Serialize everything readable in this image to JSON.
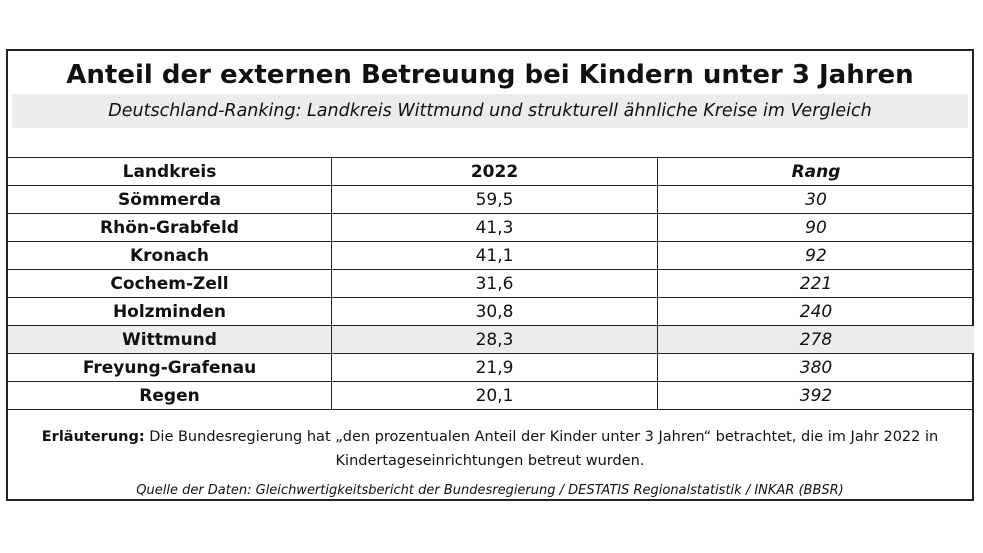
{
  "title": "Anteil der externen Betreuung bei Kindern unter 3 Jahren",
  "subtitle": "Deutschland-Ranking: Landkreis Wittmund und strukturell ähnliche Kreise im Vergleich",
  "table": {
    "headers": [
      "Landkreis",
      "2022",
      "Rang"
    ],
    "rows": [
      {
        "landkreis": "Sömmerda",
        "value": "59,5",
        "rang": "30"
      },
      {
        "landkreis": "Rhön-Grabfeld",
        "value": "41,3",
        "rang": "90"
      },
      {
        "landkreis": "Kronach",
        "value": "41,1",
        "rang": "92"
      },
      {
        "landkreis": "Cochem-Zell",
        "value": "31,6",
        "rang": "221"
      },
      {
        "landkreis": "Holzminden",
        "value": "30,8",
        "rang": "240"
      },
      {
        "landkreis": "Wittmund",
        "value": "28,3",
        "rang": "278",
        "highlight": true
      },
      {
        "landkreis": "Freyung-Grafenau",
        "value": "21,9",
        "rang": "380"
      },
      {
        "landkreis": "Regen",
        "value": "20,1",
        "rang": "392"
      }
    ]
  },
  "note": {
    "label": "Erläuterung:",
    "text": " Die Bundesregierung hat „den prozentualen Anteil der Kinder unter 3 Jahren“ betrachtet, die im Jahr 2022 in Kindertageseinrichtungen betreut wurden."
  },
  "source": "Quelle der Daten: Gleichwertigkeitsbericht der Bundesregierung / DESTATIS Regionalstatistik / INKAR (BBSR)",
  "colors": {
    "highlight_row": "#ececec",
    "subtitle_band": "#ececec",
    "border": "#222222"
  }
}
